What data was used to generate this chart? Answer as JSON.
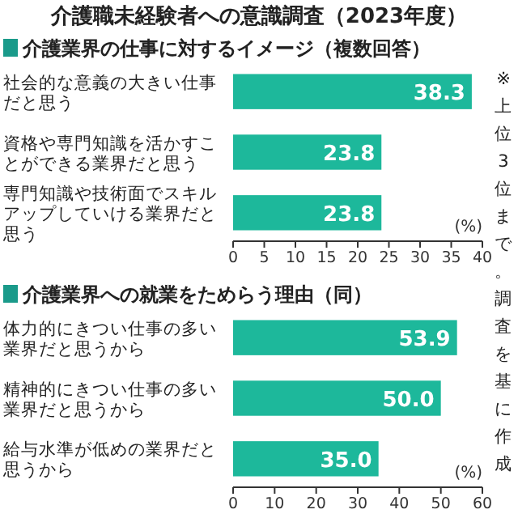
{
  "chart_data": [
    {
      "type": "bar",
      "orientation": "horizontal",
      "title": "介護職未経験者への意識調査（2023年度）",
      "subtitle": "介護業界の仕事に対するイメージ（複数回答）",
      "categories": [
        "社会的な意義の大きい仕事だと思う",
        "資格や専門知識を活かすことができる業界だと思う",
        "専門知識や技術面でスキルアップしていける業界だと思う"
      ],
      "values": [
        38.3,
        23.8,
        23.8
      ],
      "value_labels": [
        "38.3",
        "23.8",
        "23.8"
      ],
      "color": "#1db89b",
      "xlim": [
        0,
        40
      ],
      "xticks": [
        0,
        5,
        10,
        15,
        20,
        25,
        30,
        35,
        40
      ],
      "xlabel": "(%)",
      "grid": false
    },
    {
      "type": "bar",
      "orientation": "horizontal",
      "subtitle": "介護業界への就業をためらう理由（同）",
      "categories": [
        "体力的にきつい仕事の多い業界だと思うから",
        "精神的にきつい仕事の多い業界だと思うから",
        "給与水準が低めの業界だと思うから"
      ],
      "values": [
        53.9,
        50,
        35
      ],
      "value_labels": [
        "53.9",
        "50.0",
        "35.0"
      ],
      "color": "#1db89b",
      "xlim": [
        0,
        60
      ],
      "xticks": [
        0,
        10,
        20,
        30,
        40,
        50,
        60
      ],
      "xlabel": "(%)",
      "grid": false,
      "annotations": [
        "※上位3位まで。調査を基に作成"
      ]
    }
  ]
}
